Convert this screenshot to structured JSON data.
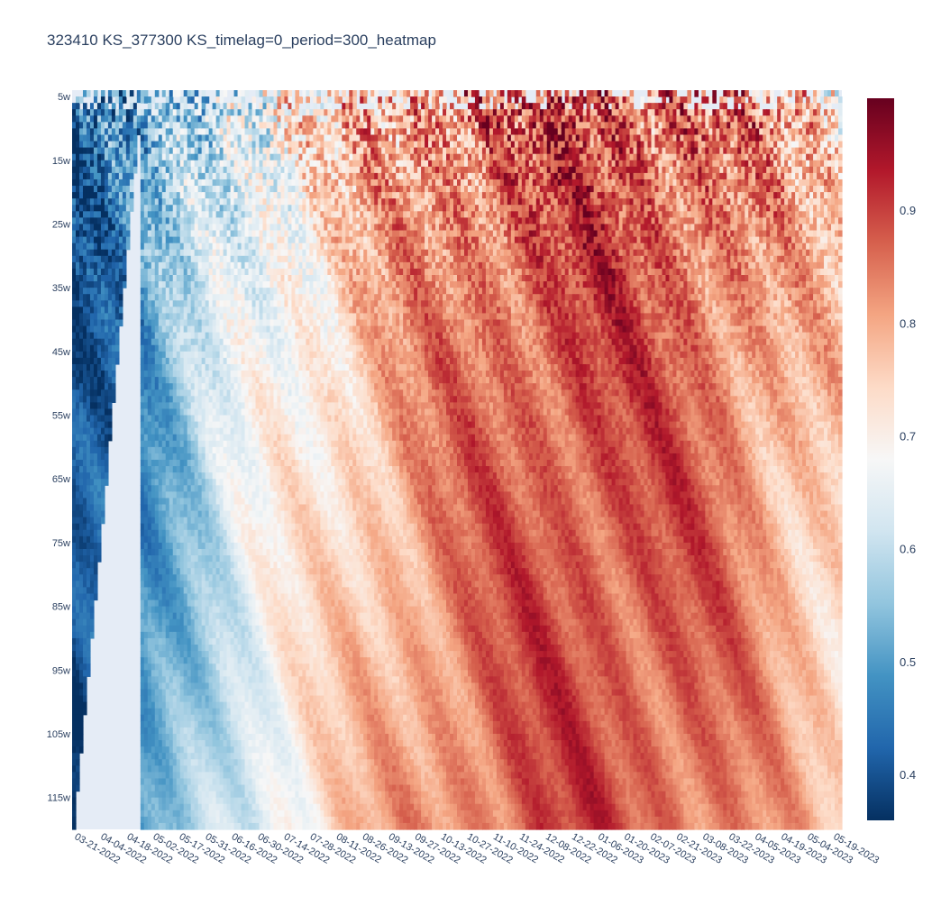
{
  "chart_data": {
    "type": "heatmap",
    "title": "323410 KS_377300 KS_timelag=0_period=300_heatmap",
    "xlabel": "",
    "ylabel": "",
    "x_tick_labels": [
      "03-21-2022",
      "04-04-2022",
      "04-18-2022",
      "05-02-2022",
      "05-17-2022",
      "05-31-2022",
      "06-16-2022",
      "06-30-2022",
      "07-14-2022",
      "07-28-2022",
      "08-11-2022",
      "08-26-2022",
      "09-13-2022",
      "09-27-2022",
      "10-13-2022",
      "10-27-2022",
      "11-10-2022",
      "11-24-2022",
      "12-08-2022",
      "12-22-2022",
      "01-06-2023",
      "01-20-2023",
      "02-07-2023",
      "02-21-2023",
      "03-08-2023",
      "03-22-2023",
      "04-05-2023",
      "04-19-2023",
      "05-04-2023",
      "05-19-2023"
    ],
    "y_tick_labels": [
      "5w",
      "15w",
      "25w",
      "35w",
      "45w",
      "55w",
      "65w",
      "75w",
      "85w",
      "95w",
      "105w",
      "115w"
    ],
    "y_range_weeks": [
      4,
      120
    ],
    "colorbar": {
      "colorscale": "RdBu reversed",
      "range": [
        0.36,
        1.0
      ],
      "tick_labels": [
        "0.4",
        "0.5",
        "0.6",
        "0.7",
        "0.8",
        "0.9"
      ],
      "tick_values": [
        0.4,
        0.5,
        0.6,
        0.7,
        0.8,
        0.9
      ]
    },
    "column_trend": [
      {
        "date": "03-21-2022",
        "value": 0.42
      },
      {
        "date": "04-18-2022",
        "value": 0.47
      },
      {
        "date": "05-17-2022",
        "value": 0.56
      },
      {
        "date": "06-16-2022",
        "value": 0.64
      },
      {
        "date": "07-14-2022",
        "value": 0.7
      },
      {
        "date": "08-11-2022",
        "value": 0.74
      },
      {
        "date": "09-13-2022",
        "value": 0.79
      },
      {
        "date": "10-13-2022",
        "value": 0.83
      },
      {
        "date": "11-10-2022",
        "value": 0.86
      },
      {
        "date": "12-08-2022",
        "value": 0.88
      },
      {
        "date": "01-06-2023",
        "value": 0.89
      },
      {
        "date": "02-07-2023",
        "value": 0.88
      },
      {
        "date": "03-08-2023",
        "value": 0.87
      },
      {
        "date": "04-05-2023",
        "value": 0.84
      },
      {
        "date": "05-04-2023",
        "value": 0.79
      },
      {
        "date": "05-19-2023",
        "value": 0.76
      }
    ],
    "grid": true,
    "plot_background": "#E5ECF6"
  }
}
